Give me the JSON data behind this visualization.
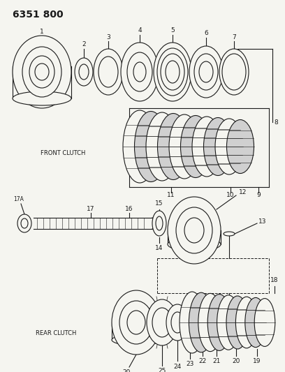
{
  "title": "6351 800",
  "bg": "#f5f5f0",
  "lc": "#1a1a1a",
  "front_clutch_label": "FRONT CLUTCH",
  "rear_clutch_label": "REAR CLUTCH",
  "fig_w": 4.08,
  "fig_h": 5.33,
  "dpi": 100
}
